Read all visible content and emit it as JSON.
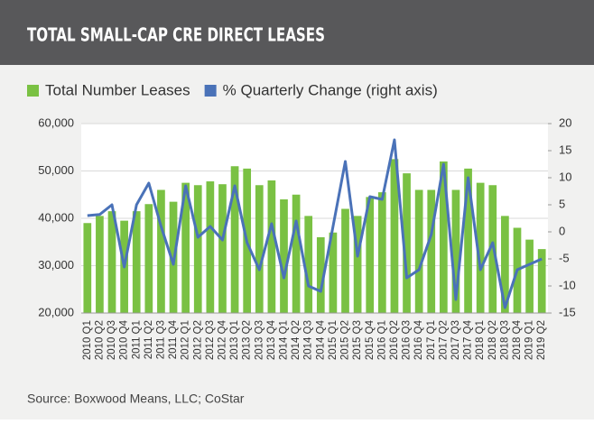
{
  "chart_data": {
    "type": "bar-line",
    "title": "TOTAL SMALL-CAP CRE DIRECT LEASES",
    "source": "Source: Boxwood Means, LLC; CoStar",
    "categories": [
      "2010 Q1",
      "2010 Q2",
      "2010 Q3",
      "2010 Q4",
      "2011 Q1",
      "2011 Q2",
      "2011 Q3",
      "2011 Q4",
      "2012 Q1",
      "2012 Q2",
      "2012 Q3",
      "2012 Q4",
      "2013 Q1",
      "2013 Q2",
      "2013 Q3",
      "2013 Q4",
      "2014 Q1",
      "2014 Q2",
      "2014 Q3",
      "2014 Q4",
      "2015 Q1",
      "2015 Q2",
      "2015 Q3",
      "2015 Q4",
      "2016 Q1",
      "2016 Q2",
      "2016 Q3",
      "2016 Q4",
      "2017 Q1",
      "2017 Q2",
      "2017 Q3",
      "2017 Q4",
      "2018 Q1",
      "2018 Q2",
      "2018 Q3",
      "2018 Q4",
      "2019 Q1",
      "2019 Q2"
    ],
    "series": [
      {
        "name": "Total Number Leases",
        "color": "#7ac143",
        "kind": "bar",
        "values": [
          39000,
          40500,
          41500,
          39500,
          41500,
          43000,
          46000,
          43500,
          47500,
          47000,
          47800,
          47200,
          51000,
          50500,
          47000,
          48000,
          44000,
          45000,
          40500,
          36000,
          37000,
          42000,
          40500,
          44500,
          45500,
          52500,
          49500,
          46000,
          46000,
          52000,
          46000,
          50500,
          47500,
          47000,
          40500,
          38000,
          35500,
          33500
        ]
      },
      {
        "name": "% Quarterly Change (right axis)",
        "color": "#4a72b8",
        "kind": "line",
        "axis": "y2",
        "values": [
          3,
          3.2,
          5,
          -6.5,
          5,
          9,
          1,
          -6,
          8.5,
          -1,
          1,
          -1.5,
          8.5,
          -2,
          -7,
          1.5,
          -8.5,
          2,
          -10,
          -11,
          1,
          13,
          -4.5,
          6.5,
          6,
          17,
          -8.5,
          -7,
          -0.5,
          12.5,
          -12.5,
          10,
          -7,
          -2,
          -14,
          -7,
          -6,
          -5
        ]
      }
    ],
    "ylim": [
      20000,
      60000
    ],
    "yticks": [
      {
        "value": 20000,
        "label": "20,000"
      },
      {
        "value": 30000,
        "label": "30,000"
      },
      {
        "value": 40000,
        "label": "40,000"
      },
      {
        "value": 50000,
        "label": "50,000"
      },
      {
        "value": 60000,
        "label": "60,000"
      }
    ],
    "y2lim": [
      -15,
      20
    ],
    "y2ticks": [
      -15,
      -10,
      -5,
      0,
      5,
      10,
      15,
      20
    ],
    "legend": "top"
  }
}
